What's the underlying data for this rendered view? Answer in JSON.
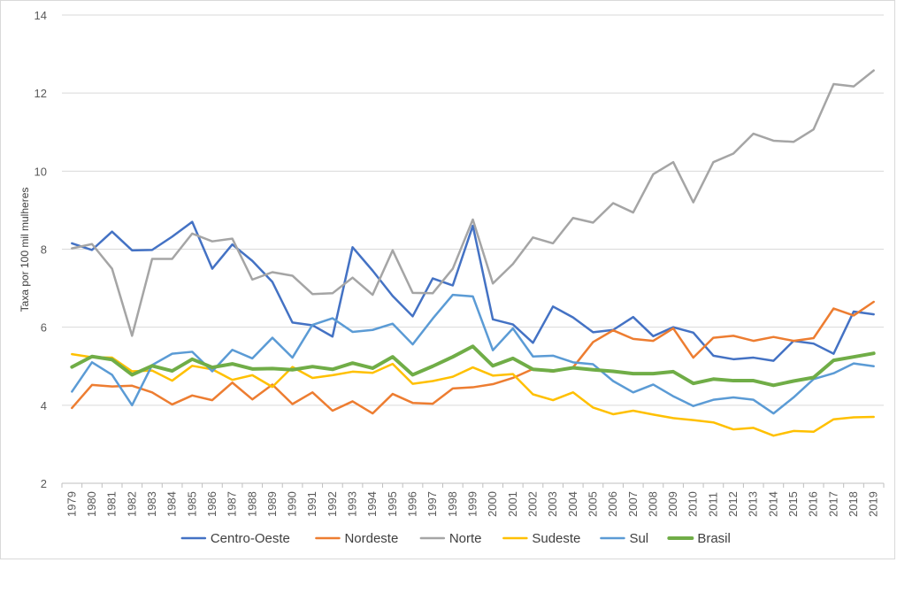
{
  "chart_data": {
    "type": "line",
    "title": "",
    "xlabel": "",
    "ylabel": "Taxa por 100 mil mulheres",
    "ylim": [
      2,
      14
    ],
    "yticks": [
      2,
      4,
      6,
      8,
      10,
      12,
      14
    ],
    "grid": "horizontal",
    "legend_position": "bottom",
    "x": [
      "1979",
      "1980",
      "1981",
      "1982",
      "1983",
      "1984",
      "1985",
      "1986",
      "1987",
      "1988",
      "1989",
      "1990",
      "1991",
      "1992",
      "1993",
      "1994",
      "1995",
      "1996",
      "1997",
      "1998",
      "1999",
      "2000",
      "2001",
      "2002",
      "2003",
      "2004",
      "2005",
      "2006",
      "2007",
      "2008",
      "2009",
      "2010",
      "2011",
      "2012",
      "2013",
      "2014",
      "2015",
      "2016",
      "2017",
      "2018",
      "2019"
    ],
    "series": [
      {
        "name": "Centro-Oeste",
        "color": "#4472c4",
        "width": 2.5,
        "values": [
          8.15,
          7.98,
          8.45,
          7.97,
          7.98,
          8.32,
          8.7,
          7.5,
          8.12,
          7.7,
          7.16,
          6.12,
          6.05,
          5.76,
          8.05,
          7.45,
          6.8,
          6.28,
          7.25,
          7.07,
          8.6,
          6.2,
          6.07,
          5.6,
          6.53,
          6.25,
          5.87,
          5.93,
          6.26,
          5.77,
          6.0,
          5.86,
          5.27,
          5.18,
          5.22,
          5.14,
          5.65,
          5.58,
          5.32,
          6.4,
          6.33
        ]
      },
      {
        "name": "Nordeste",
        "color": "#ed7d31",
        "width": 2.5,
        "values": [
          3.93,
          4.52,
          4.48,
          4.5,
          4.33,
          4.02,
          4.25,
          4.13,
          4.58,
          4.15,
          4.53,
          4.03,
          4.33,
          3.86,
          4.1,
          3.79,
          4.29,
          4.06,
          4.04,
          4.43,
          4.46,
          4.54,
          4.7,
          4.93,
          4.86,
          4.97,
          5.62,
          5.92,
          5.7,
          5.65,
          5.97,
          5.22,
          5.73,
          5.78,
          5.65,
          5.75,
          5.65,
          5.72,
          6.48,
          6.3,
          6.65
        ]
      },
      {
        "name": "Norte",
        "color": "#a5a5a5",
        "width": 2.5,
        "values": [
          8.02,
          8.13,
          7.5,
          5.78,
          7.75,
          7.75,
          8.4,
          8.2,
          8.27,
          7.22,
          7.41,
          7.32,
          6.85,
          6.87,
          7.27,
          6.83,
          7.97,
          6.88,
          6.87,
          7.5,
          8.76,
          7.12,
          7.62,
          8.3,
          8.15,
          8.8,
          8.68,
          9.18,
          8.94,
          9.92,
          10.23,
          9.2,
          10.23,
          10.45,
          10.96,
          10.78,
          10.75,
          11.07,
          12.23,
          12.17,
          12.58
        ]
      },
      {
        "name": "Sudeste",
        "color": "#ffc000",
        "width": 2.5,
        "values": [
          5.31,
          5.23,
          5.22,
          4.87,
          4.89,
          4.63,
          5.01,
          4.92,
          4.65,
          4.77,
          4.47,
          4.98,
          4.7,
          4.77,
          4.86,
          4.83,
          5.06,
          4.55,
          4.62,
          4.73,
          4.97,
          4.76,
          4.8,
          4.28,
          4.13,
          4.33,
          3.94,
          3.77,
          3.86,
          3.76,
          3.67,
          3.62,
          3.56,
          3.38,
          3.42,
          3.22,
          3.34,
          3.32,
          3.64,
          3.69,
          3.7
        ]
      },
      {
        "name": "Sul",
        "color": "#5b9bd5",
        "width": 2.5,
        "values": [
          4.35,
          5.1,
          4.78,
          4.0,
          5.03,
          5.32,
          5.37,
          4.87,
          5.42,
          5.2,
          5.73,
          5.22,
          6.06,
          6.23,
          5.88,
          5.93,
          6.09,
          5.56,
          6.22,
          6.83,
          6.79,
          5.41,
          5.97,
          5.25,
          5.27,
          5.1,
          5.05,
          4.62,
          4.33,
          4.53,
          4.23,
          3.98,
          4.14,
          4.2,
          4.14,
          3.79,
          4.2,
          4.67,
          4.82,
          5.07,
          5.0
        ]
      },
      {
        "name": "Brasil",
        "color": "#70ad47",
        "width": 4,
        "values": [
          4.98,
          5.25,
          5.17,
          4.78,
          5.01,
          4.88,
          5.18,
          4.97,
          5.06,
          4.93,
          4.94,
          4.91,
          4.99,
          4.92,
          5.08,
          4.95,
          5.24,
          4.78,
          5.0,
          5.24,
          5.51,
          5.01,
          5.2,
          4.92,
          4.88,
          4.96,
          4.91,
          4.87,
          4.81,
          4.81,
          4.86,
          4.56,
          4.67,
          4.63,
          4.63,
          4.51,
          4.62,
          4.71,
          5.15,
          5.24,
          5.33
        ]
      }
    ]
  }
}
